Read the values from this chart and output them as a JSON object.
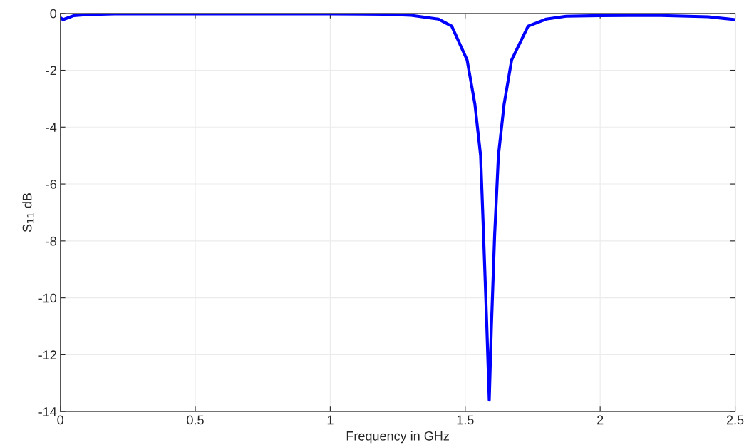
{
  "chart_data": {
    "type": "line",
    "xlabel": "Frequency in GHz",
    "ylabel": "S$_{11}$ dB",
    "xlim": [
      0,
      2.5
    ],
    "ylim": [
      -14,
      0
    ],
    "xticks": [
      0,
      0.5,
      1,
      1.5,
      2,
      2.5
    ],
    "yticks": [
      -14,
      -12,
      -10,
      -8,
      -6,
      -4,
      -2,
      0
    ],
    "grid": true,
    "line_style": "solid",
    "marker": "none",
    "series": [
      {
        "color": "#0000ff",
        "x": [
          0,
          0.01,
          0.03,
          0.05,
          0.1,
          0.2,
          0.5,
          1.0,
          1.2,
          1.3,
          1.4,
          1.45,
          1.507,
          1.536,
          1.557,
          1.568,
          1.58,
          1.589,
          1.597,
          1.609,
          1.623,
          1.644,
          1.672,
          1.733,
          1.8,
          1.874,
          2.0,
          2.2,
          2.4,
          2.5
        ],
        "values": [
          -0.15,
          -0.22,
          -0.15,
          -0.08,
          -0.04,
          -0.02,
          -0.02,
          -0.02,
          -0.03,
          -0.07,
          -0.2,
          -0.45,
          -1.64,
          -3.2,
          -5.0,
          -7.8,
          -11.0,
          -13.6,
          -11.0,
          -7.8,
          -5.0,
          -3.2,
          -1.64,
          -0.45,
          -0.2,
          -0.1,
          -0.08,
          -0.07,
          -0.12,
          -0.22
        ]
      }
    ]
  }
}
